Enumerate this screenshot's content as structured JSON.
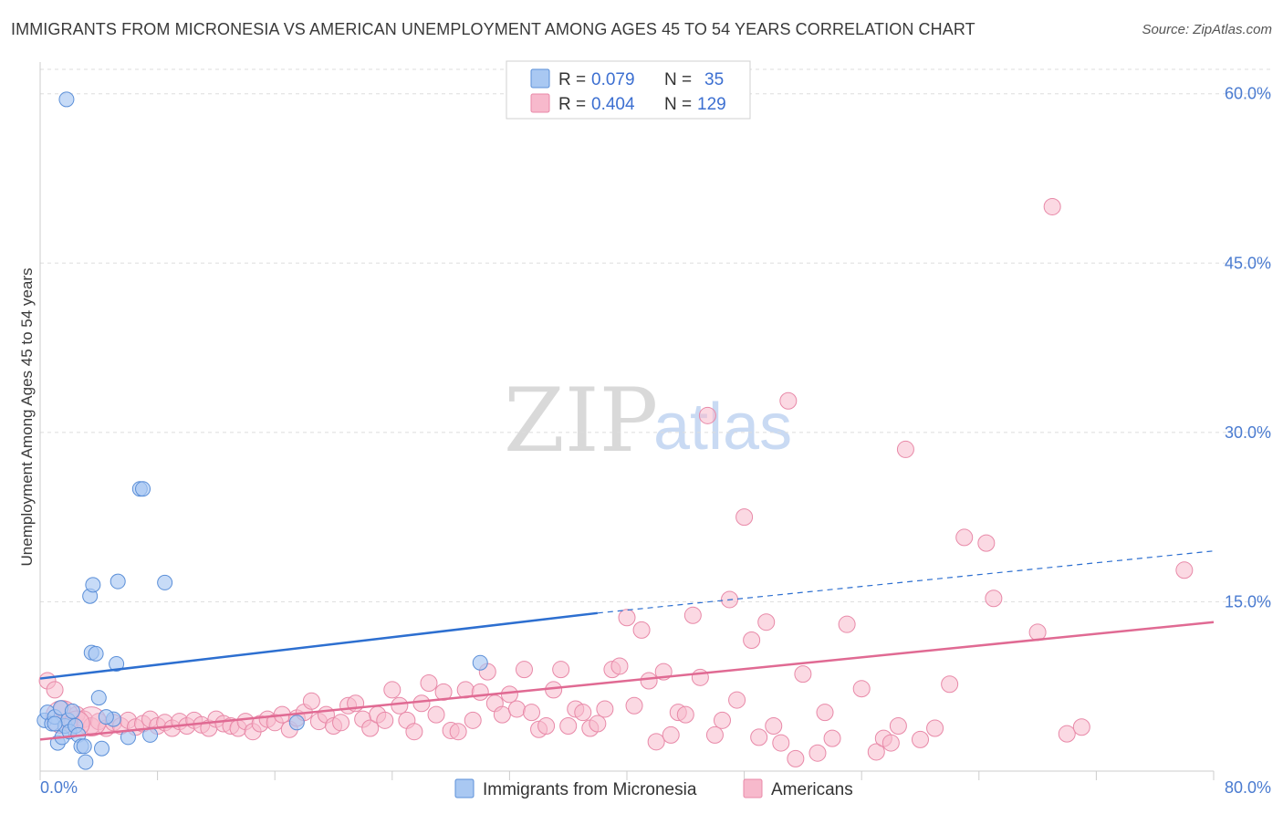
{
  "title": "IMMIGRANTS FROM MICRONESIA VS AMERICAN UNEMPLOYMENT AMONG AGES 45 TO 54 YEARS CORRELATION CHART",
  "source": "Source: ZipAtlas.com",
  "watermark": {
    "zip": "ZIP",
    "atlas": "atlas"
  },
  "colors": {
    "blue_fill": "#a9c8f2",
    "blue_stroke": "#5b8fd8",
    "blue_line": "#2d6fd0",
    "pink_fill": "#f7b9cc",
    "pink_stroke": "#e889a8",
    "pink_line": "#e06a93",
    "grid": "#dddddd",
    "tick_text": "#4a7bd0"
  },
  "legend": {
    "rows": [
      {
        "r_label": "R =",
        "r_value": "0.079",
        "n_label": "N =",
        "n_value": "35"
      },
      {
        "r_label": "R =",
        "r_value": "0.404",
        "n_label": "N =",
        "n_value": "129"
      }
    ]
  },
  "chart_data": {
    "type": "scatter",
    "title": "IMMIGRANTS FROM MICRONESIA VS AMERICAN UNEMPLOYMENT AMONG AGES 45 TO 54 YEARS CORRELATION CHART",
    "xlabel": "",
    "ylabel": "Unemployment Among Ages 45 to 54 years",
    "xlim": [
      0,
      80
    ],
    "ylim": [
      0,
      62
    ],
    "x_tick_labels": [
      "0.0%",
      "80.0%"
    ],
    "y_ticks": [
      15,
      30,
      45,
      60
    ],
    "y_tick_labels": [
      "15.0%",
      "30.0%",
      "45.0%",
      "60.0%"
    ],
    "grid": true,
    "legend_position": "top-center",
    "series": [
      {
        "name": "Immigrants from Micronesia",
        "r": 0.079,
        "n": 35,
        "trend": {
          "x": [
            0,
            38
          ],
          "y": [
            8.2,
            14.0
          ],
          "dashed_to_x": 80,
          "dashed_to_y": 19.5
        },
        "points": [
          [
            0.3,
            4.5
          ],
          [
            0.5,
            5.2
          ],
          [
            0.8,
            4.2
          ],
          [
            1.0,
            4.8
          ],
          [
            1.2,
            2.5
          ],
          [
            1.4,
            5.6
          ],
          [
            1.5,
            3.0
          ],
          [
            1.7,
            4.0
          ],
          [
            1.9,
            4.5
          ],
          [
            2.0,
            3.5
          ],
          [
            2.2,
            5.3
          ],
          [
            2.4,
            4.0
          ],
          [
            2.6,
            3.2
          ],
          [
            2.8,
            2.2
          ],
          [
            3.0,
            2.2
          ],
          [
            3.1,
            0.8
          ],
          [
            3.4,
            15.5
          ],
          [
            3.5,
            10.5
          ],
          [
            3.6,
            16.5
          ],
          [
            3.8,
            10.4
          ],
          [
            4.0,
            6.5
          ],
          [
            4.2,
            2.0
          ],
          [
            5.0,
            4.6
          ],
          [
            5.2,
            9.5
          ],
          [
            5.3,
            16.8
          ],
          [
            6.0,
            3.0
          ],
          [
            6.8,
            25.0
          ],
          [
            7.0,
            25.0
          ],
          [
            7.5,
            3.2
          ],
          [
            8.5,
            16.7
          ],
          [
            17.5,
            4.3
          ],
          [
            30.0,
            9.6
          ],
          [
            1.8,
            59.5
          ],
          [
            1.0,
            4.2
          ],
          [
            4.5,
            4.8
          ]
        ]
      },
      {
        "name": "Americans",
        "r": 0.404,
        "n": 129,
        "trend": {
          "x": [
            0,
            80
          ],
          "y": [
            2.8,
            13.2
          ]
        },
        "points": [
          [
            0.5,
            8.0
          ],
          [
            1.0,
            7.2
          ],
          [
            1.5,
            5.5
          ],
          [
            2.0,
            4.2
          ],
          [
            2.5,
            5.0
          ],
          [
            3.0,
            4.6
          ],
          [
            3.5,
            4.0
          ],
          [
            4.0,
            4.4
          ],
          [
            4.5,
            3.8
          ],
          [
            5.0,
            4.3
          ],
          [
            5.5,
            4.0
          ],
          [
            6.0,
            4.5
          ],
          [
            6.5,
            3.9
          ],
          [
            7.0,
            4.2
          ],
          [
            7.5,
            4.6
          ],
          [
            8.0,
            4.0
          ],
          [
            8.5,
            4.3
          ],
          [
            9.0,
            3.8
          ],
          [
            9.5,
            4.4
          ],
          [
            10.0,
            4.0
          ],
          [
            10.5,
            4.5
          ],
          [
            11.0,
            4.1
          ],
          [
            11.5,
            3.8
          ],
          [
            12.0,
            4.6
          ],
          [
            12.5,
            4.2
          ],
          [
            13.0,
            4.0
          ],
          [
            13.5,
            3.8
          ],
          [
            14.0,
            4.4
          ],
          [
            14.5,
            3.5
          ],
          [
            15.0,
            4.2
          ],
          [
            15.5,
            4.6
          ],
          [
            16.0,
            4.3
          ],
          [
            16.5,
            5.0
          ],
          [
            17.0,
            3.7
          ],
          [
            17.5,
            4.7
          ],
          [
            18.0,
            5.2
          ],
          [
            18.5,
            6.2
          ],
          [
            19.0,
            4.4
          ],
          [
            19.5,
            5.0
          ],
          [
            20.0,
            4.0
          ],
          [
            20.5,
            4.3
          ],
          [
            21.0,
            5.8
          ],
          [
            21.5,
            6.0
          ],
          [
            22.0,
            4.6
          ],
          [
            22.5,
            3.8
          ],
          [
            23.0,
            5.0
          ],
          [
            23.5,
            4.5
          ],
          [
            24.0,
            7.2
          ],
          [
            24.5,
            5.8
          ],
          [
            25.0,
            4.5
          ],
          [
            25.5,
            3.5
          ],
          [
            26.0,
            6.0
          ],
          [
            26.5,
            7.8
          ],
          [
            27.0,
            5.0
          ],
          [
            27.5,
            7.0
          ],
          [
            28.0,
            3.6
          ],
          [
            28.5,
            3.5
          ],
          [
            29.0,
            7.2
          ],
          [
            29.5,
            4.5
          ],
          [
            30.0,
            7.0
          ],
          [
            30.5,
            8.8
          ],
          [
            31.0,
            6.0
          ],
          [
            31.5,
            5.0
          ],
          [
            32.0,
            6.8
          ],
          [
            32.5,
            5.5
          ],
          [
            33.0,
            9.0
          ],
          [
            33.5,
            5.2
          ],
          [
            34.0,
            3.7
          ],
          [
            34.5,
            4.0
          ],
          [
            35.0,
            7.2
          ],
          [
            35.5,
            9.0
          ],
          [
            36.0,
            4.0
          ],
          [
            36.5,
            5.5
          ],
          [
            37.0,
            5.2
          ],
          [
            37.5,
            3.8
          ],
          [
            38.0,
            4.2
          ],
          [
            38.5,
            5.5
          ],
          [
            39.0,
            9.0
          ],
          [
            39.5,
            9.3
          ],
          [
            40.0,
            13.6
          ],
          [
            40.5,
            5.8
          ],
          [
            41.0,
            12.5
          ],
          [
            41.5,
            8.0
          ],
          [
            42.0,
            2.6
          ],
          [
            42.5,
            8.8
          ],
          [
            43.0,
            3.2
          ],
          [
            43.5,
            5.2
          ],
          [
            44.0,
            5.0
          ],
          [
            44.5,
            13.8
          ],
          [
            45.0,
            8.3
          ],
          [
            45.5,
            31.5
          ],
          [
            46.0,
            3.2
          ],
          [
            46.5,
            4.5
          ],
          [
            47.0,
            15.2
          ],
          [
            47.5,
            6.3
          ],
          [
            48.0,
            22.5
          ],
          [
            48.5,
            11.6
          ],
          [
            49.0,
            3.0
          ],
          [
            49.5,
            13.2
          ],
          [
            50.0,
            4.0
          ],
          [
            50.5,
            2.5
          ],
          [
            51.0,
            32.8
          ],
          [
            51.5,
            1.1
          ],
          [
            52.0,
            8.6
          ],
          [
            53.0,
            1.6
          ],
          [
            53.5,
            5.2
          ],
          [
            54.0,
            2.9
          ],
          [
            55.0,
            13.0
          ],
          [
            56.0,
            7.3
          ],
          [
            57.0,
            1.7
          ],
          [
            57.5,
            2.9
          ],
          [
            58.0,
            2.5
          ],
          [
            58.5,
            4.0
          ],
          [
            59.0,
            28.5
          ],
          [
            60.0,
            2.8
          ],
          [
            61.0,
            3.8
          ],
          [
            62.0,
            7.7
          ],
          [
            63.0,
            20.7
          ],
          [
            64.5,
            20.2
          ],
          [
            65.0,
            15.3
          ],
          [
            68.0,
            12.3
          ],
          [
            69.0,
            50.0
          ],
          [
            70.0,
            3.3
          ],
          [
            71.0,
            3.9
          ],
          [
            78.0,
            17.8
          ]
        ]
      }
    ]
  },
  "bottom_legend": [
    "Immigrants from Micronesia",
    "Americans"
  ]
}
